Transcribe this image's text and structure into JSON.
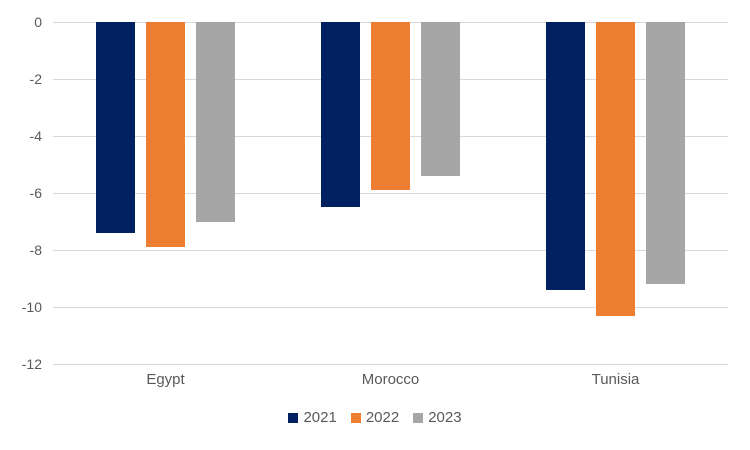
{
  "chart_data": {
    "type": "bar",
    "orientation": "vertical",
    "title": "",
    "xlabel": "",
    "ylabel": "",
    "categories": [
      "Egypt",
      "Morocco",
      "Tunisia"
    ],
    "series": [
      {
        "name": "2021",
        "color": "#002060",
        "values": [
          -7.4,
          -6.5,
          -9.4
        ]
      },
      {
        "name": "2022",
        "color": "#ed7d31",
        "values": [
          -7.9,
          -5.9,
          -10.3
        ]
      },
      {
        "name": "2023",
        "color": "#a6a6a6",
        "values": [
          -7.0,
          -5.4,
          -9.2
        ]
      }
    ],
    "ylim": [
      -12,
      0
    ],
    "y_ticks": [
      0,
      -2,
      -4,
      -6,
      -8,
      -10,
      -12
    ],
    "y_tick_labels": [
      "0",
      "-2",
      "-4",
      "-6",
      "-8",
      "-10",
      "-12"
    ],
    "grid": true,
    "gridline_color": "#d9d9d9",
    "axis_text_color": "#595959",
    "legend_position": "bottom",
    "legend_entries": [
      "2021",
      "2022",
      "2023"
    ],
    "background_color": "#ffffff"
  }
}
